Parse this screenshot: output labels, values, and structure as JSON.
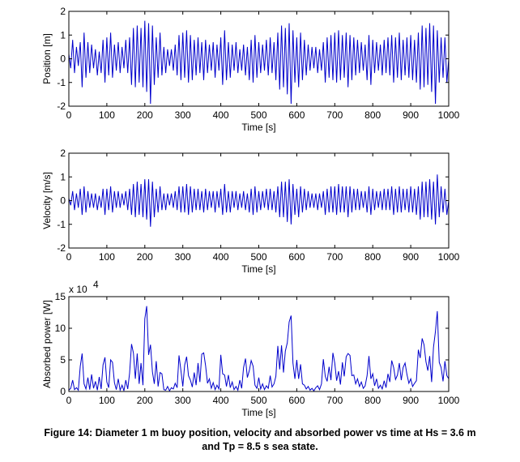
{
  "caption": {
    "line1": "Figure 14: Diameter 1 m buoy position, velocity and absorbed power vs time at Hs = 3.6 m",
    "line2": "and Tp = 8.5 s sea state."
  },
  "chart_data": [
    {
      "type": "line",
      "xlabel": "Time [s]",
      "ylabel": "Position [m]",
      "xlim": [
        0,
        1000
      ],
      "ylim": [
        -2,
        2
      ],
      "xticks": [
        "0",
        "100",
        "200",
        "300",
        "400",
        "500",
        "600",
        "700",
        "800",
        "900",
        "1000"
      ],
      "yticks": [
        "-2",
        "-1",
        "0",
        "1",
        "2"
      ],
      "grid": false,
      "color": "#0000cc",
      "x_step": 5,
      "values": [
        0.2,
        -0.4,
        0.8,
        -0.6,
        0.5,
        -0.3,
        0.7,
        -1.2,
        1.1,
        -0.8,
        0.7,
        -0.6,
        0.6,
        -0.4,
        0.4,
        -0.7,
        0.3,
        -0.6,
        0.8,
        -1.0,
        0.9,
        -0.7,
        1.1,
        -0.8,
        0.6,
        -0.5,
        0.7,
        -0.6,
        0.5,
        -0.4,
        0.8,
        -0.6,
        0.9,
        -1.1,
        1.3,
        -1.2,
        1.4,
        -1.0,
        1.3,
        -1.2,
        1.6,
        -1.4,
        1.5,
        -1.9,
        1.4,
        -1.1,
        0.9,
        -0.8,
        1.1,
        -0.7,
        0.5,
        -0.6,
        0.4,
        -0.3,
        0.4,
        -0.5,
        0.6,
        -0.7,
        1.0,
        -0.9,
        1.1,
        -0.8,
        1.2,
        -1.0,
        1.0,
        -0.9,
        0.8,
        -0.7,
        0.9,
        -0.6,
        0.7,
        -0.9,
        0.8,
        -0.6,
        0.6,
        -0.5,
        0.7,
        -0.8,
        0.6,
        -0.5,
        0.9,
        -1.1,
        1.2,
        -0.9,
        0.7,
        -0.8,
        0.6,
        -0.5,
        0.7,
        -0.6,
        0.4,
        -0.5,
        0.6,
        -0.7,
        0.5,
        -0.9,
        0.8,
        -1.0,
        1.0,
        -0.8,
        0.7,
        -0.6,
        0.6,
        -0.5,
        0.8,
        -0.7,
        0.9,
        -0.6,
        0.7,
        -0.9,
        1.1,
        -1.3,
        1.4,
        -1.2,
        1.3,
        -1.5,
        1.5,
        -1.9,
        1.2,
        -1.0,
        0.9,
        -1.2,
        1.1,
        -0.9,
        0.8,
        -0.7,
        0.6,
        -0.5,
        0.5,
        -0.4,
        0.5,
        -0.6,
        0.4,
        -0.5,
        0.7,
        -1.0,
        0.9,
        -0.8,
        1.0,
        -0.9,
        1.1,
        -1.0,
        1.2,
        -0.9,
        1.0,
        -0.8,
        1.1,
        -1.2,
        1.0,
        -0.9,
        0.9,
        -0.7,
        0.8,
        -0.6,
        0.7,
        -0.5,
        0.6,
        -0.9,
        1.0,
        -1.1,
        0.8,
        -0.6,
        0.7,
        -0.5,
        0.6,
        -0.7,
        0.8,
        -0.6,
        0.9,
        -0.7,
        1.0,
        -1.0,
        0.9,
        -0.8,
        1.1,
        -0.9,
        0.8,
        -0.7,
        0.9,
        -0.8,
        1.0,
        -0.9,
        0.8,
        -1.0,
        1.1,
        -1.3,
        1.4,
        -1.2,
        1.3,
        -1.1,
        1.5,
        -1.4,
        1.4,
        -1.9,
        1.2,
        -1.0,
        0.9,
        -0.8,
        0.9,
        -1.0,
        0.0
      ]
    },
    {
      "type": "line",
      "xlabel": "Time [s]",
      "ylabel": "Velocity [m/s]",
      "xlim": [
        0,
        1000
      ],
      "ylim": [
        -2,
        2
      ],
      "xticks": [
        "0",
        "100",
        "200",
        "300",
        "400",
        "500",
        "600",
        "700",
        "800",
        "900",
        "1000"
      ],
      "yticks": [
        "-2",
        "-1",
        "0",
        "1",
        "2"
      ],
      "grid": false,
      "color": "#0000cc",
      "x_step": 5,
      "values": [
        0.1,
        -0.2,
        0.4,
        -0.4,
        0.3,
        -0.3,
        0.5,
        -0.6,
        0.6,
        -0.5,
        0.4,
        -0.3,
        0.3,
        -0.3,
        0.3,
        -0.4,
        0.2,
        -0.3,
        0.5,
        -0.6,
        0.5,
        -0.4,
        0.6,
        -0.5,
        0.4,
        -0.3,
        0.4,
        -0.3,
        0.3,
        -0.2,
        0.4,
        -0.4,
        0.5,
        -0.6,
        0.7,
        -0.7,
        0.8,
        -0.6,
        0.7,
        -0.7,
        0.9,
        -0.8,
        0.9,
        -1.1,
        0.8,
        -0.7,
        0.5,
        -0.5,
        0.6,
        -0.4,
        0.3,
        -0.4,
        0.3,
        -0.2,
        0.3,
        -0.3,
        0.4,
        -0.4,
        0.6,
        -0.5,
        0.6,
        -0.5,
        0.7,
        -0.6,
        0.6,
        -0.5,
        0.5,
        -0.4,
        0.5,
        -0.4,
        0.4,
        -0.5,
        0.5,
        -0.4,
        0.4,
        -0.3,
        0.4,
        -0.5,
        0.4,
        -0.3,
        0.5,
        -0.6,
        0.7,
        -0.5,
        0.4,
        -0.5,
        0.4,
        -0.3,
        0.4,
        -0.4,
        0.3,
        -0.3,
        0.4,
        -0.4,
        0.3,
        -0.5,
        0.5,
        -0.6,
        0.6,
        -0.5,
        0.4,
        -0.4,
        0.4,
        -0.3,
        0.5,
        -0.4,
        0.5,
        -0.4,
        0.4,
        -0.5,
        0.6,
        -0.7,
        0.8,
        -0.7,
        0.8,
        -0.9,
        0.9,
        -1.0,
        0.7,
        -0.6,
        0.5,
        -0.7,
        0.6,
        -0.5,
        0.5,
        -0.4,
        0.4,
        -0.3,
        0.3,
        -0.3,
        0.3,
        -0.4,
        0.3,
        -0.3,
        0.4,
        -0.6,
        0.5,
        -0.5,
        0.6,
        -0.5,
        0.6,
        -0.6,
        0.7,
        -0.5,
        0.6,
        -0.5,
        0.6,
        -0.7,
        0.6,
        -0.5,
        0.5,
        -0.4,
        0.5,
        -0.4,
        0.4,
        -0.3,
        0.4,
        -0.5,
        0.6,
        -0.6,
        0.5,
        -0.4,
        0.4,
        -0.3,
        0.4,
        -0.4,
        0.5,
        -0.4,
        0.5,
        -0.4,
        0.6,
        -0.6,
        0.5,
        -0.5,
        0.6,
        -0.5,
        0.5,
        -0.4,
        0.5,
        -0.5,
        0.6,
        -0.5,
        0.5,
        -0.6,
        0.6,
        -0.8,
        0.8,
        -0.7,
        0.8,
        -0.7,
        0.9,
        -0.8,
        0.8,
        -1.0,
        1.1,
        -0.7,
        0.6,
        -0.5,
        0.5,
        -0.6,
        0.0
      ]
    },
    {
      "type": "line",
      "xlabel": "Time [s]",
      "ylabel": "Absorbed power [W]",
      "y_multiplier": "x 10",
      "y_multiplier_exp": "4",
      "xlim": [
        0,
        1000
      ],
      "ylim": [
        0,
        15
      ],
      "xticks": [
        "0",
        "100",
        "200",
        "300",
        "400",
        "500",
        "600",
        "700",
        "800",
        "900",
        "1000"
      ],
      "yticks": [
        "0",
        "5",
        "10",
        "15"
      ],
      "grid": false,
      "color": "#0000cc",
      "x_step": 5,
      "values": [
        0.2,
        0.5,
        1.8,
        0.3,
        0.6,
        0.2,
        4.0,
        6.0,
        1.2,
        0.4,
        2.2,
        0.3,
        2.7,
        0.5,
        1.6,
        0.2,
        2.3,
        0.4,
        4.2,
        5.4,
        1.5,
        0.6,
        5.0,
        4.6,
        1.4,
        0.3,
        2.0,
        0.2,
        1.0,
        0.1,
        1.8,
        0.4,
        2.9,
        7.5,
        6.1,
        2.0,
        6.0,
        1.2,
        4.5,
        1.0,
        11.5,
        13.5,
        5.8,
        7.4,
        3.1,
        1.2,
        4.8,
        0.8,
        3.0,
        2.8,
        0.3,
        0.2,
        0.8,
        0.1,
        0.6,
        0.4,
        1.3,
        0.6,
        5.7,
        3.3,
        0.8,
        4.2,
        5.5,
        2.5,
        1.8,
        0.7,
        3.0,
        1.0,
        4.5,
        1.5,
        5.9,
        6.1,
        4.1,
        1.3,
        2.0,
        0.5,
        1.4,
        0.3,
        1.0,
        0.4,
        5.8,
        2.8,
        2.6,
        0.8,
        2.6,
        0.6,
        1.5,
        0.3,
        0.8,
        0.2,
        1.8,
        0.5,
        3.8,
        5.2,
        2.2,
        3.3,
        4.9,
        4.0,
        1.0,
        0.5,
        2.2,
        0.4,
        1.2,
        0.3,
        0.9,
        0.5,
        2.5,
        0.7,
        1.2,
        2.4,
        7.2,
        3.5,
        7.3,
        3.0,
        6.4,
        7.7,
        11.0,
        12.0,
        4.5,
        2.0,
        5.0,
        2.0,
        4.3,
        1.2,
        1.0,
        0.4,
        0.8,
        0.2,
        0.5,
        0.1,
        0.6,
        0.9,
        0.3,
        1.2,
        5.1,
        2.4,
        1.6,
        3.9,
        1.8,
        6.1,
        4.5,
        1.7,
        3.2,
        1.1,
        4.6,
        2.4,
        5.5,
        6.0,
        5.7,
        2.5,
        2.6,
        1.2,
        2.0,
        0.8,
        1.5,
        0.5,
        0.9,
        2.5,
        5.6,
        2.0,
        2.8,
        0.9,
        2.0,
        0.5,
        1.0,
        0.4,
        1.7,
        0.6,
        2.8,
        1.5,
        4.9,
        3.8,
        1.9,
        2.6,
        4.5,
        1.8,
        3.8,
        4.5,
        2.7,
        1.3,
        2.0,
        0.8,
        1.3,
        1.7,
        6.6,
        5.3,
        8.4,
        7.4,
        4.7,
        3.3,
        5.6,
        1.5,
        7.0,
        9.5,
        12.7,
        4.6,
        3.8,
        1.6,
        4.8,
        2.5,
        2.0
      ]
    }
  ]
}
